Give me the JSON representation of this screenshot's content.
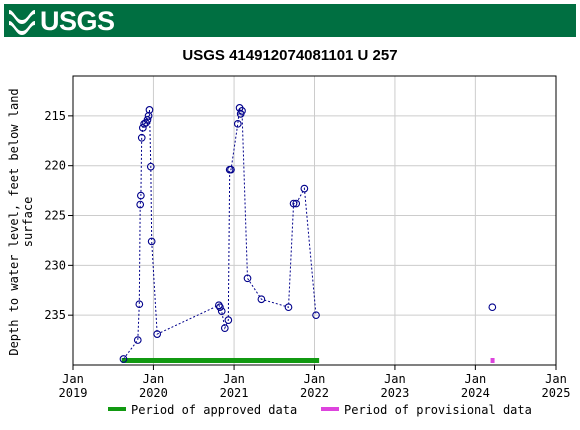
{
  "header": {
    "logo_text": "USGS",
    "background_color": "#006f41"
  },
  "chart_data": {
    "type": "scatter",
    "title": "USGS 414912074081101 U 257",
    "ylabel_line1": "Depth to water level, feet below land",
    "ylabel_line2": "surface",
    "ylim": [
      240,
      211
    ],
    "y_inverted": true,
    "y_ticks": [
      215,
      220,
      225,
      230,
      235
    ],
    "xlim": [
      "2019-01-01",
      "2025-01-01"
    ],
    "x_ticks": [
      {
        "date": "2019-01-01",
        "month": "Jan",
        "year": "2019"
      },
      {
        "date": "2020-01-01",
        "month": "Jan",
        "year": "2020"
      },
      {
        "date": "2021-01-01",
        "month": "Jan",
        "year": "2021"
      },
      {
        "date": "2022-01-01",
        "month": "Jan",
        "year": "2022"
      },
      {
        "date": "2023-01-01",
        "month": "Jan",
        "year": "2023"
      },
      {
        "date": "2024-01-01",
        "month": "Jan",
        "year": "2024"
      },
      {
        "date": "2025-01-01",
        "month": "Jan",
        "year": "2025"
      }
    ],
    "grid": true,
    "marker_color": "#00008b",
    "connected_points": [
      {
        "x": "2019-08-18",
        "y": 239.4
      },
      {
        "x": "2019-10-22",
        "y": 237.5
      },
      {
        "x": "2019-10-29",
        "y": 233.9
      },
      {
        "x": "2019-11-02",
        "y": 223.9
      },
      {
        "x": "2019-11-05",
        "y": 223.0
      },
      {
        "x": "2019-11-09",
        "y": 217.2
      },
      {
        "x": "2019-11-14",
        "y": 216.2
      },
      {
        "x": "2019-11-20",
        "y": 215.8
      },
      {
        "x": "2019-11-28",
        "y": 215.7
      },
      {
        "x": "2019-12-05",
        "y": 215.4
      },
      {
        "x": "2019-12-10",
        "y": 215.0
      },
      {
        "x": "2019-12-14",
        "y": 214.4
      },
      {
        "x": "2019-12-20",
        "y": 220.1
      },
      {
        "x": "2019-12-24",
        "y": 227.6
      },
      {
        "x": "2020-01-18",
        "y": 236.9
      },
      {
        "x": "2020-10-24",
        "y": 234.0
      },
      {
        "x": "2020-10-29",
        "y": 234.2
      },
      {
        "x": "2020-11-06",
        "y": 234.6
      },
      {
        "x": "2020-11-20",
        "y": 236.3
      },
      {
        "x": "2020-12-06",
        "y": 235.5
      },
      {
        "x": "2020-12-12",
        "y": 220.4
      },
      {
        "x": "2020-12-18",
        "y": 220.4
      },
      {
        "x": "2021-01-18",
        "y": 215.8
      },
      {
        "x": "2021-01-26",
        "y": 214.2
      },
      {
        "x": "2021-01-31",
        "y": 214.8
      },
      {
        "x": "2021-02-06",
        "y": 214.5
      },
      {
        "x": "2021-03-03",
        "y": 231.3
      },
      {
        "x": "2021-05-05",
        "y": 233.4
      },
      {
        "x": "2021-09-05",
        "y": 234.2
      },
      {
        "x": "2021-09-28",
        "y": 223.8
      },
      {
        "x": "2021-10-10",
        "y": 223.8
      },
      {
        "x": "2021-11-16",
        "y": 222.3
      },
      {
        "x": "2022-01-08",
        "y": 235.0
      }
    ],
    "isolated_points": [
      {
        "x": "2024-03-18",
        "y": 234.2
      }
    ],
    "approved_period": {
      "start": "2019-08-10",
      "end": "2022-01-22",
      "color": "#119911"
    },
    "provisional_period": {
      "start": "2024-03-10",
      "end": "2024-03-24",
      "color": "#dd44dd"
    },
    "legend": [
      {
        "label": "Period of approved data",
        "color": "#119911"
      },
      {
        "label": "Period of provisional data",
        "color": "#dd44dd"
      }
    ]
  }
}
